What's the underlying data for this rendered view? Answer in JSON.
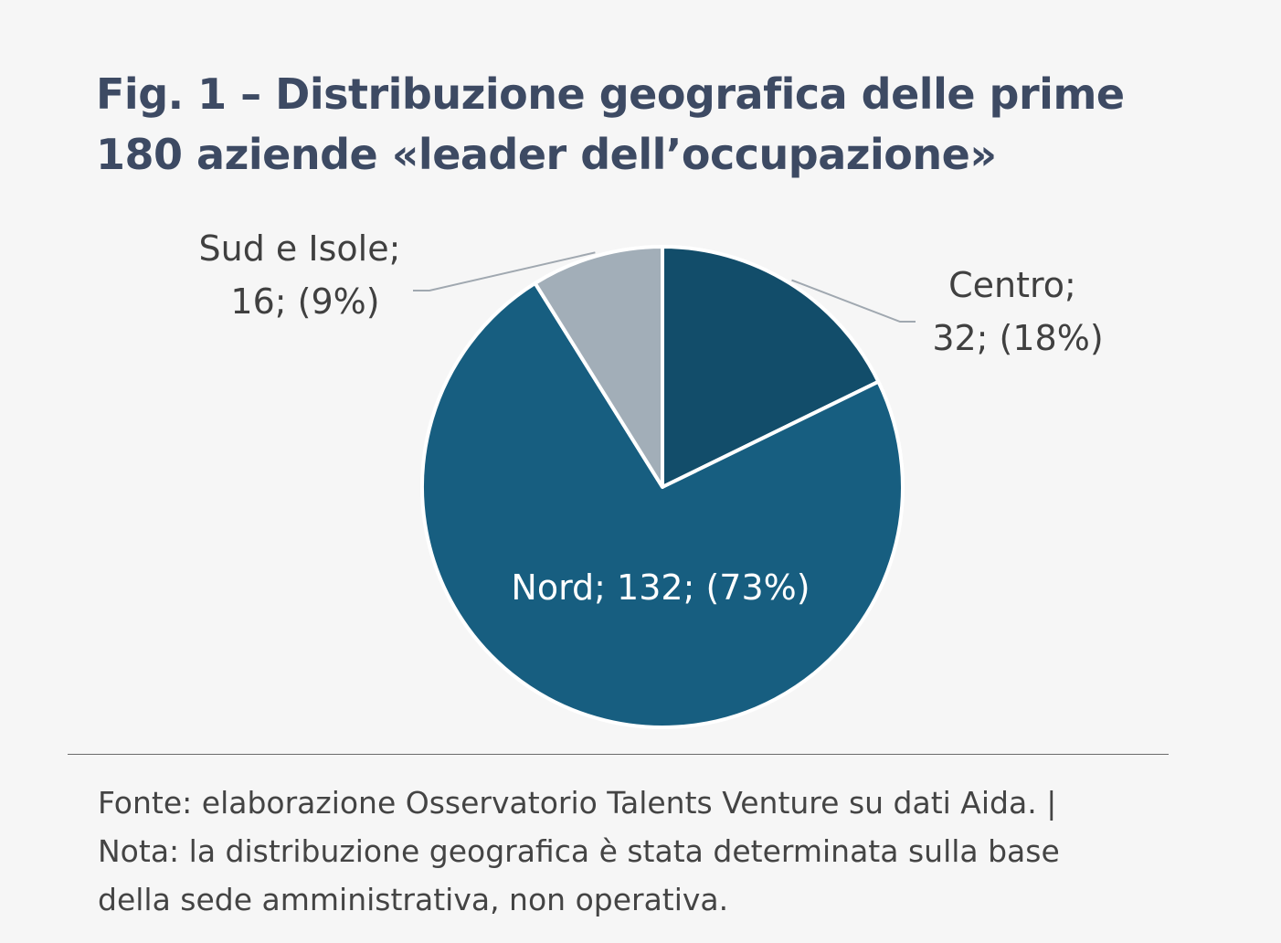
{
  "title_lines": [
    "Fig. 1 – Distribuzione geografica delle prime",
    "180 aziende «leader dell’occupazione»"
  ],
  "chart_data": {
    "type": "pie",
    "slices": [
      {
        "name": "Centro",
        "value": 32,
        "percent": 18,
        "color": "#124d6a",
        "label_lines": [
          "Centro;",
          "32; (18%)"
        ]
      },
      {
        "name": "Nord",
        "value": 132,
        "percent": 73,
        "color": "#175e80",
        "label_lines": [
          "Nord; 132; (73%)"
        ]
      },
      {
        "name": "Sud e Isole",
        "value": 16,
        "percent": 9,
        "color": "#a2aeb8",
        "label_lines": [
          "Sud e Isole;",
          "16; (9%)"
        ]
      }
    ],
    "start_angle": "12 o'clock",
    "direction": "clockwise",
    "legend": "none"
  },
  "footnote_lines": [
    "Fonte: elaborazione Osservatorio Talents Venture su dati Aida. |",
    "Nota: la distribuzione geografica è stata determinata sulla base",
    "della sede amministrativa, non operativa."
  ]
}
